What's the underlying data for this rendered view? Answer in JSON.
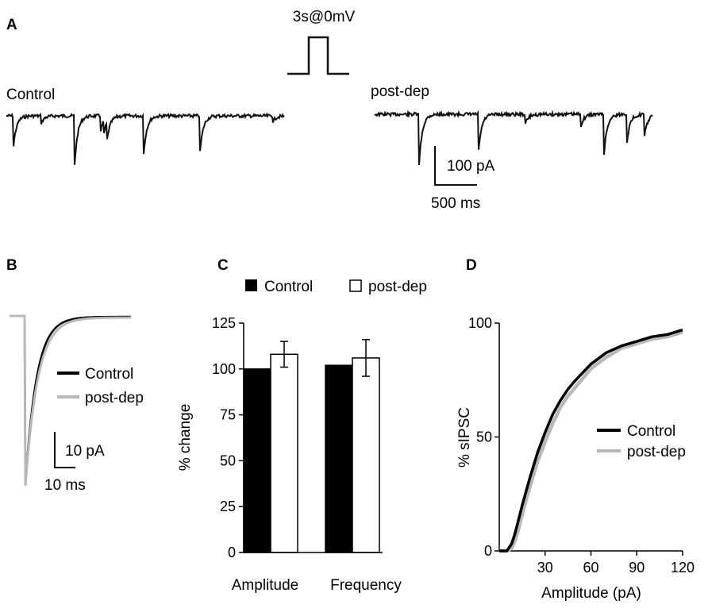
{
  "colors": {
    "control": "#000000",
    "post_dep": "#b8b8b8",
    "trace": "#111111"
  },
  "panel_a": {
    "label": "A",
    "step_label": "3s@0mV",
    "control_label": "Control",
    "post_label": "post-dep",
    "scale_y_label": "100 pA",
    "scale_x_label": "500 ms"
  },
  "panel_b": {
    "label": "B",
    "legend": [
      "Control",
      "post-dep"
    ],
    "scale_y_label": "10 pA",
    "scale_x_label": "10 ms"
  },
  "panel_c": {
    "label": "C",
    "legend": [
      "Control",
      "post-dep"
    ]
  },
  "panel_d": {
    "label": "D",
    "legend": [
      "Control",
      "post-dep"
    ]
  },
  "chart_data": [
    {
      "type": "bar",
      "panel": "C",
      "categories": [
        "Amplitude",
        "Frequency"
      ],
      "series": [
        {
          "name": "Control",
          "values": [
            100,
            102
          ],
          "errors": [
            0,
            0
          ],
          "fill": "#000000"
        },
        {
          "name": "post-dep",
          "values": [
            108,
            106
          ],
          "errors": [
            7,
            10
          ],
          "fill": "#ffffff"
        }
      ],
      "ylabel": "% change",
      "ylim": [
        0,
        125
      ],
      "yticks": [
        0,
        25,
        50,
        75,
        100,
        125
      ],
      "legend_position": "top"
    },
    {
      "type": "line",
      "panel": "D",
      "xlabel": "Amplitude (pA)",
      "ylabel": "% sIPSC",
      "xlim": [
        0,
        120
      ],
      "ylim": [
        0,
        100
      ],
      "xticks": [
        30,
        60,
        90,
        120
      ],
      "yticks": [
        0,
        50,
        100
      ],
      "legend_position": "bottom-right",
      "series": [
        {
          "name": "Control",
          "color": "#000000",
          "x": [
            0,
            5,
            8,
            10,
            12,
            15,
            20,
            25,
            30,
            35,
            40,
            45,
            50,
            60,
            70,
            80,
            90,
            100,
            110,
            120
          ],
          "y": [
            0,
            0,
            3,
            7,
            12,
            20,
            32,
            43,
            52,
            60,
            66,
            71,
            75,
            82,
            87,
            90,
            92,
            94,
            95,
            97
          ]
        },
        {
          "name": "post-dep",
          "color": "#b8b8b8",
          "x": [
            0,
            5,
            8,
            10,
            12,
            15,
            20,
            25,
            30,
            35,
            40,
            45,
            50,
            60,
            70,
            80,
            90,
            100,
            110,
            120
          ],
          "y": [
            0,
            0,
            1,
            4,
            8,
            16,
            28,
            39,
            48,
            56,
            63,
            68,
            72,
            80,
            85,
            89,
            91,
            93,
            94,
            96
          ]
        }
      ]
    }
  ]
}
